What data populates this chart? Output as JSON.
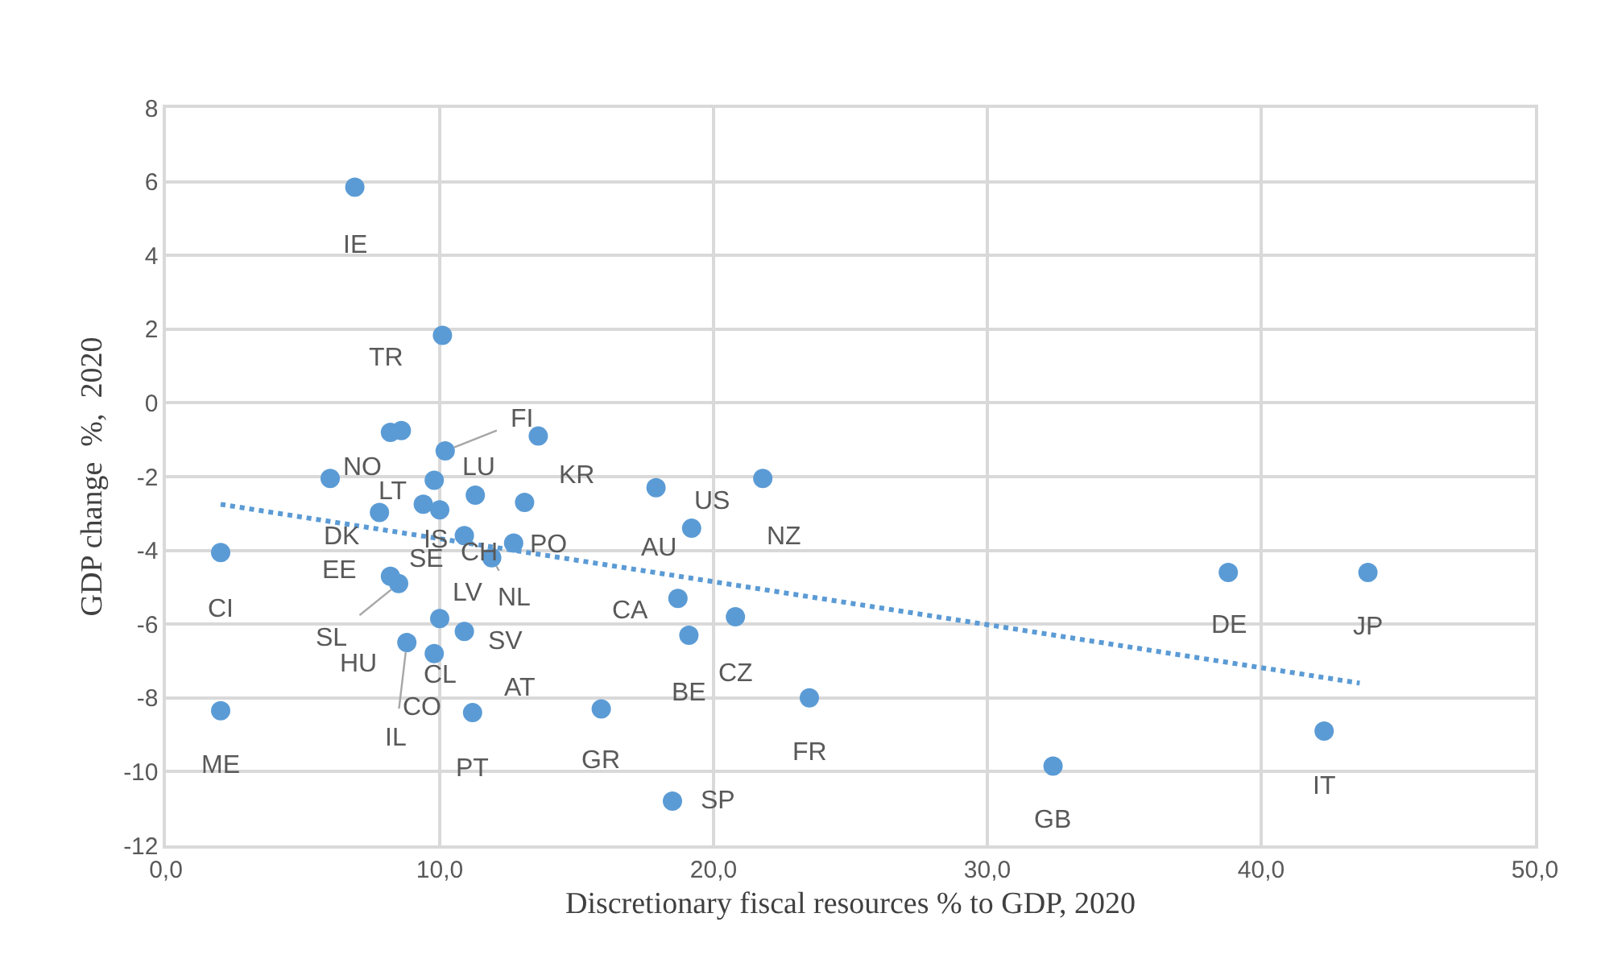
{
  "chart_data": {
    "type": "scatter",
    "xlabel": "Discretionary fiscal resources % to GDP, 2020",
    "ylabel": "GDP change  %,  2020",
    "xlim": [
      0,
      50
    ],
    "ylim": [
      -12,
      8
    ],
    "xticks": [
      {
        "value": 0,
        "label": "0,0"
      },
      {
        "value": 10,
        "label": "10,0"
      },
      {
        "value": 20,
        "label": "20,0"
      },
      {
        "value": 30,
        "label": "30,0"
      },
      {
        "value": 40,
        "label": "40,0"
      },
      {
        "value": 50,
        "label": "50,0"
      }
    ],
    "yticks": [
      -12,
      -10,
      -8,
      -6,
      -4,
      -2,
      0,
      2,
      4,
      6,
      8
    ],
    "grid": true,
    "marker": "circle",
    "series": [
      {
        "color": "#5b9bd5",
        "x": [
          6.9,
          10.1,
          10.2,
          13.6,
          8.2,
          8.6,
          6.0,
          9.8,
          11.3,
          13.1,
          7.8,
          9.4,
          10.0,
          10.9,
          11.9,
          12.7,
          2.0,
          8.2,
          8.5,
          10.0,
          10.9,
          8.8,
          9.8,
          11.2,
          2.0,
          15.9,
          17.9,
          21.8,
          19.2,
          18.7,
          20.8,
          19.1,
          23.5,
          18.5,
          38.8,
          43.9,
          42.3,
          32.4
        ],
        "values": [
          5.85,
          1.83,
          -1.3,
          -0.9,
          -0.8,
          -0.75,
          -2.05,
          -2.1,
          -2.5,
          -2.7,
          -2.97,
          -2.75,
          -2.9,
          -3.6,
          -4.2,
          -3.8,
          -4.06,
          -4.7,
          -4.9,
          -5.85,
          -6.2,
          -6.5,
          -6.8,
          -8.4,
          -8.35,
          -8.3,
          -2.3,
          -2.05,
          -3.4,
          -5.3,
          -5.8,
          -6.3,
          -8.0,
          -10.8,
          -4.6,
          -4.6,
          -8.9,
          -9.85
        ]
      },
      {
        "type": "line",
        "color": "#5b9bd5",
        "line_style": "dotted",
        "marker": "none",
        "x": [
          2.0,
          43.6
        ],
        "values": [
          -2.75,
          -7.6
        ]
      }
    ],
    "annotations": [
      {
        "text": "IE",
        "x": 6.9,
        "y": 5.85
      },
      {
        "text": "TR",
        "x": 10.1,
        "y": 1.83
      },
      {
        "text": "FI",
        "x": 10.2,
        "y": -1.3
      },
      {
        "text": "NO",
        "x": 6.0,
        "y": -2.05
      },
      {
        "text": "LT",
        "x": 9.8,
        "y": -2.1
      },
      {
        "text": "LU",
        "x": 11.3,
        "y": -2.5
      },
      {
        "text": "KR",
        "x": 13.1,
        "y": -2.7
      },
      {
        "text": "DK",
        "x": 7.8,
        "y": -2.97
      },
      {
        "text": "IS",
        "x": 10.0,
        "y": -2.9
      },
      {
        "text": "CH",
        "x": 10.9,
        "y": -3.6
      },
      {
        "text": "PO",
        "x": 12.7,
        "y": -3.8
      },
      {
        "text": "NL",
        "x": 11.9,
        "y": -4.2
      },
      {
        "text": "CI",
        "x": 2.0,
        "y": -4.06
      },
      {
        "text": "EE",
        "x": 8.2,
        "y": -4.7
      },
      {
        "text": "SE",
        "x": 8.5,
        "y": -4.9
      },
      {
        "text": "SL",
        "x": 8.5,
        "y": -4.9
      },
      {
        "text": "HU",
        "x": 8.8,
        "y": -6.5
      },
      {
        "text": "LV",
        "x": 10.0,
        "y": -5.85
      },
      {
        "text": "SV",
        "x": 10.9,
        "y": -6.2
      },
      {
        "text": "IL",
        "x": 8.8,
        "y": -6.5
      },
      {
        "text": "CL",
        "x": 9.8,
        "y": -6.8
      },
      {
        "text": "CO",
        "x": 11.2,
        "y": -8.4
      },
      {
        "text": "AT",
        "x": 11.2,
        "y": -8.4
      },
      {
        "text": "PT",
        "x": 11.2,
        "y": -8.4
      },
      {
        "text": "ME",
        "x": 2.0,
        "y": -8.35
      },
      {
        "text": "GR",
        "x": 15.9,
        "y": -8.3
      },
      {
        "text": "SP",
        "x": 18.5,
        "y": -10.8
      },
      {
        "text": "BE",
        "x": 19.1,
        "y": -6.3
      },
      {
        "text": "CZ",
        "x": 20.8,
        "y": -5.8
      },
      {
        "text": "CA",
        "x": 18.7,
        "y": -5.3
      },
      {
        "text": "AU",
        "x": 19.2,
        "y": -3.4
      },
      {
        "text": "US",
        "x": 17.9,
        "y": -2.3
      },
      {
        "text": "NZ",
        "x": 21.8,
        "y": -2.05
      },
      {
        "text": "FR",
        "x": 23.5,
        "y": -8.0
      },
      {
        "text": "DE",
        "x": 38.8,
        "y": -4.6
      },
      {
        "text": "JP",
        "x": 43.9,
        "y": -4.6
      },
      {
        "text": "GB",
        "x": 32.4,
        "y": -9.85
      },
      {
        "text": "IT",
        "x": 42.3,
        "y": -8.9
      }
    ]
  }
}
